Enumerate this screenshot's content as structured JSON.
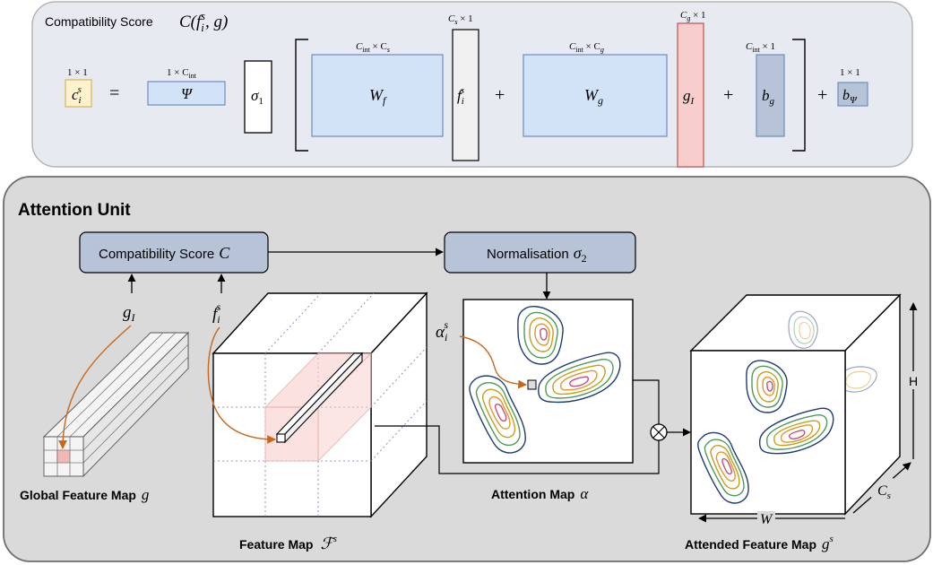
{
  "top_panel": {
    "title": "Compatibility Score",
    "title_math": "C(f",
    "title_math_sub": "i",
    "title_math_sup": "s",
    "title_math_end": ", g)",
    "equation": {
      "c_label": "c",
      "c_sub": "i",
      "c_sup": "s",
      "c_dim": "1 × 1",
      "equals": "=",
      "psi_label": "Ψ",
      "psi_dim": "1 × C",
      "psi_dim_sub": "int",
      "sigma1": "σ",
      "sigma1_sub": "1",
      "wf_label": "W",
      "wf_sub": "f",
      "wf_dim": "C",
      "wf_dim_sub": "int",
      "wf_dim_rest": " × C",
      "wf_dim_rest_sub": "s",
      "fi_label": "f",
      "fi_sub": "i",
      "fi_sup": "s",
      "fi_dim": "C",
      "fi_dim_sub": "s",
      "fi_dim_rest": " × 1",
      "plus1": "+",
      "wg_label": "W",
      "wg_sub": "g",
      "wg_dim": "C",
      "wg_dim_sub": "int",
      "wg_dim_rest": " × C",
      "wg_dim_rest_sub": "g",
      "gi_label": "g",
      "gi_sub": "I",
      "gi_dim": "C",
      "gi_dim_sub": "g",
      "gi_dim_rest": " × 1",
      "plus2": "+",
      "bg_label": "b",
      "bg_sub": "g",
      "bg_dim": "C",
      "bg_dim_sub": "int",
      "bg_dim_rest": " × 1",
      "plus3": "+",
      "bpsi_label": "b",
      "bpsi_sub": "Ψ",
      "bpsi_dim": "1 × 1"
    }
  },
  "bottom_panel": {
    "title": "Attention Unit",
    "compat_box": "Compatibility Score",
    "compat_math": "C",
    "norm_box": "Normalisation",
    "norm_math": "σ",
    "norm_math_sub": "2",
    "gI_label": "g",
    "gI_sub": "I",
    "fi_label": "f",
    "fi_sub": "i",
    "fi_sup": "s",
    "alpha_label": "α",
    "alpha_sub": "i",
    "alpha_sup": "s",
    "global_caption": "Global Feature Map",
    "global_math": "g",
    "feature_caption": "Feature Map",
    "feature_math": "ℱ",
    "feature_math_sup": "s",
    "attention_caption": "Attention Map",
    "attention_math": "α",
    "attended_caption": "Attended Feature Map",
    "attended_math": "g",
    "attended_math_sup": "s",
    "axis_h": "H",
    "axis_w": "W",
    "axis_c": "C",
    "axis_c_sub": "s"
  },
  "colors": {
    "panel_top_fill": "#e8eaf2",
    "panel_bottom_fill": "#dadada",
    "box_fill": "#b7c4d8",
    "blue_fill": "#d2e3f7",
    "blue_stroke": "#6c8ebf",
    "yellow_fill": "#fff2cc",
    "yellow_stroke": "#d6b656",
    "red_fill": "#f8cecc",
    "red_stroke": "#b85450",
    "grey_fill": "#f0f0f0",
    "orange_arrow": "#c8661a"
  }
}
